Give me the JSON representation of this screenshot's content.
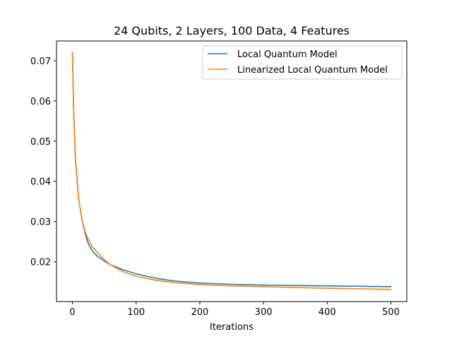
{
  "chart_data": {
    "type": "line",
    "title": "24 Qubits, 2 Layers, 100 Data,   4 Features",
    "xlabel": "Iterations",
    "ylabel": "",
    "xlim": [
      -25,
      525
    ],
    "ylim": [
      0.0101,
      0.0749
    ],
    "xticks": [
      0,
      100,
      200,
      300,
      400,
      500
    ],
    "yticks": [
      0.02,
      0.03,
      0.04,
      0.05,
      0.06,
      0.07
    ],
    "ytick_labels": [
      "0.02",
      "0.03",
      "0.04",
      "0.05",
      "0.06",
      "0.07"
    ],
    "grid": false,
    "legend_position": "top-right",
    "series": [
      {
        "name": "Local Quantum Model",
        "color": "#1f77b4",
        "x": [
          0,
          2,
          5,
          10,
          15,
          20,
          25,
          30,
          35,
          40,
          50,
          60,
          80,
          100,
          130,
          160,
          200,
          250,
          300,
          350,
          400,
          450,
          500
        ],
        "y": [
          0.072,
          0.057,
          0.045,
          0.0355,
          0.0305,
          0.027,
          0.0245,
          0.023,
          0.022,
          0.0213,
          0.0202,
          0.0192,
          0.018,
          0.017,
          0.0159,
          0.0152,
          0.0147,
          0.0144,
          0.0142,
          0.0141,
          0.014,
          0.0139,
          0.0138
        ]
      },
      {
        "name": "Linearized Local Quantum Model",
        "color": "#ff7f0e",
        "x": [
          0,
          2,
          5,
          10,
          15,
          20,
          25,
          30,
          35,
          40,
          50,
          60,
          80,
          100,
          130,
          160,
          200,
          250,
          300,
          350,
          400,
          450,
          500
        ],
        "y": [
          0.072,
          0.057,
          0.0445,
          0.0355,
          0.0305,
          0.0275,
          0.0255,
          0.024,
          0.023,
          0.0222,
          0.0205,
          0.0192,
          0.0175,
          0.0164,
          0.0154,
          0.0148,
          0.0143,
          0.014,
          0.0138,
          0.0136,
          0.0134,
          0.0133,
          0.0131
        ]
      }
    ]
  }
}
